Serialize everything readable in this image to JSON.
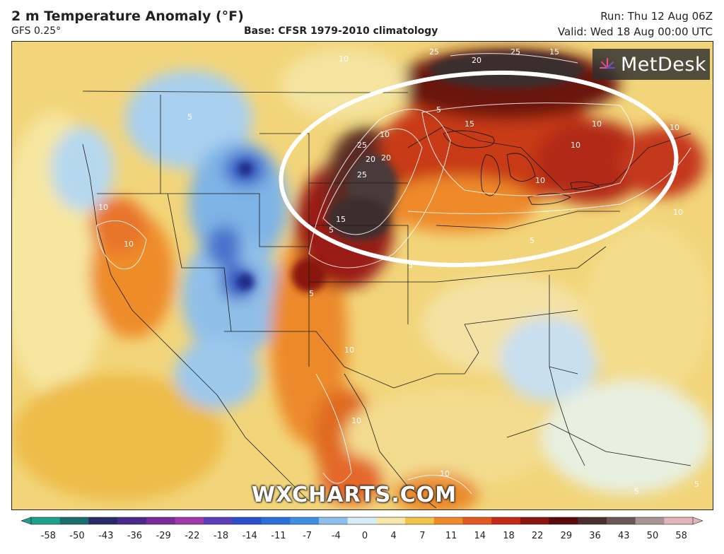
{
  "header": {
    "title": "2 m Temperature Anomaly (°F)",
    "model": "GFS 0.25°",
    "base": "Base: CFSR 1979-2010 climatology",
    "run": "Run: Thu 12 Aug 06Z",
    "valid": "Valid: Wed 18 Aug 00:00 UTC"
  },
  "logo": {
    "text": "MetDesk"
  },
  "watermark": "WXCHARTS.COM",
  "contour_labels": [
    "25",
    "20",
    "25",
    "15",
    "10",
    "10",
    "5",
    "5",
    "10",
    "15",
    "20",
    "25",
    "20",
    "25",
    "15",
    "10",
    "10",
    "10",
    "10",
    "10",
    "5",
    "5",
    "10",
    "5",
    "10",
    "10",
    "10",
    "5",
    "5",
    "5"
  ],
  "colorbar": {
    "ticks": [
      "-58",
      "-50",
      "-43",
      "-36",
      "-29",
      "-22",
      "-18",
      "-14",
      "-11",
      "-7",
      "-4",
      "0",
      "4",
      "7",
      "11",
      "14",
      "18",
      "22",
      "29",
      "36",
      "43",
      "50",
      "58"
    ],
    "colors": [
      "#1fa08a",
      "#1b6e6e",
      "#2a2a66",
      "#4a2a88",
      "#7a2a9a",
      "#a13aa8",
      "#5a3fb8",
      "#2a4fc8",
      "#2b6fd8",
      "#3f8ee0",
      "#8cc0ea",
      "#d8ecf6",
      "#f6e8a8",
      "#f3c44a",
      "#f08a28",
      "#e05a20",
      "#c42a18",
      "#8a1410",
      "#5a0a0a",
      "#4a2f2f",
      "#6a5858",
      "#a89494",
      "#e0b4b8"
    ]
  },
  "icons": {
    "logo_mark": "sunburst-logo-icon"
  },
  "colors": {
    "warm_strong": "#7a0f10",
    "warm": "#e0541c",
    "neutral": "#f2d57a",
    "cool": "#8ec3ea",
    "cold": "#2c4fb8",
    "extreme": "#4a3a3a",
    "annotation": "#ffffff"
  }
}
